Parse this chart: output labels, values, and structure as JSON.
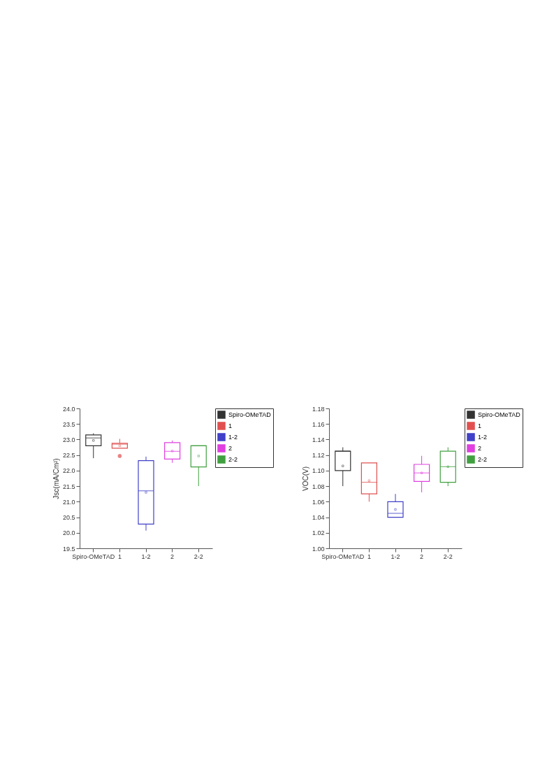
{
  "chart_data": [
    {
      "type": "box",
      "ylabel": "Jsc(mA/Cm²)",
      "categories": [
        "Spiro-OMeTAD",
        "1",
        "1-2",
        "2",
        "2-2"
      ],
      "series": [
        {
          "name": "Spiro-OMeTAD",
          "color": "#333333",
          "boxes": [
            {
              "low": 22.4,
              "q1": 22.8,
              "median": 23.05,
              "q3": 23.15,
              "high": 23.2,
              "mean": 22.97
            },
            null,
            null,
            null,
            null
          ]
        },
        {
          "name": "1",
          "color": "#e05050",
          "boxes": [
            null,
            {
              "low": 22.72,
              "q1": 22.72,
              "median": 22.85,
              "q3": 22.88,
              "high": 23.02,
              "mean": 22.8,
              "outliers": [
                22.47
              ]
            },
            null,
            null,
            null
          ]
        },
        {
          "name": "1-2",
          "color": "#4040c8",
          "boxes": [
            null,
            null,
            {
              "low": 20.07,
              "q1": 20.28,
              "median": 21.35,
              "q3": 22.32,
              "high": 22.45,
              "mean": 21.3
            },
            null,
            null
          ]
        },
        {
          "name": "2",
          "color": "#e040e0",
          "boxes": [
            null,
            null,
            null,
            {
              "low": 22.25,
              "q1": 22.37,
              "median": 22.62,
              "q3": 22.9,
              "high": 22.97,
              "mean": 22.63
            },
            null
          ]
        },
        {
          "name": "2-2",
          "color": "#40a040",
          "boxes": [
            null,
            null,
            null,
            null,
            {
              "low": 21.5,
              "q1": 22.12,
              "median": 22.8,
              "q3": 22.8,
              "high": 22.8,
              "mean": 22.47
            }
          ]
        }
      ],
      "ylim": [
        19.5,
        24.0
      ],
      "yticks": [
        {
          "value": 19.5,
          "label": "19.5"
        },
        {
          "value": 20,
          "label": "20.0"
        },
        {
          "value": 20.5,
          "label": "20.5"
        },
        {
          "value": 21,
          "label": "21.0"
        },
        {
          "value": 21.5,
          "label": "21.5"
        },
        {
          "value": 22,
          "label": "22.0"
        },
        {
          "value": 22.5,
          "label": "22.5"
        },
        {
          "value": 23,
          "label": "23.0"
        },
        {
          "value": 23.5,
          "label": "23.5"
        },
        {
          "value": 24,
          "label": "24.0"
        }
      ],
      "legend": "top right",
      "grid": false
    },
    {
      "type": "box",
      "ylabel": "VOC(V)",
      "categories": [
        "Spiro-OMeTAD",
        "1",
        "1-2",
        "2",
        "2-2"
      ],
      "series": [
        {
          "name": "Spiro-OMeTAD",
          "color": "#333333",
          "boxes": [
            {
              "low": 1.08,
              "q1": 1.1,
              "median": 1.125,
              "q3": 1.125,
              "high": 1.13,
              "mean": 1.106
            },
            null,
            null,
            null,
            null
          ]
        },
        {
          "name": "1",
          "color": "#e05050",
          "boxes": [
            null,
            {
              "low": 1.06,
              "q1": 1.07,
              "median": 1.085,
              "q3": 1.11,
              "high": 1.11,
              "mean": 1.087
            },
            null,
            null,
            null
          ]
        },
        {
          "name": "1-2",
          "color": "#4040c8",
          "boxes": [
            null,
            null,
            {
              "low": 1.04,
              "q1": 1.04,
              "median": 1.045,
              "q3": 1.06,
              "high": 1.07,
              "mean": 1.05
            },
            null,
            null
          ]
        },
        {
          "name": "2",
          "color": "#e040e0",
          "boxes": [
            null,
            null,
            null,
            {
              "low": 1.072,
              "q1": 1.086,
              "median": 1.097,
              "q3": 1.108,
              "high": 1.119,
              "mean": 1.097
            },
            null
          ]
        },
        {
          "name": "2-2",
          "color": "#40a040",
          "boxes": [
            null,
            null,
            null,
            null,
            {
              "low": 1.08,
              "q1": 1.085,
              "median": 1.105,
              "q3": 1.125,
              "high": 1.13,
              "mean": 1.105
            }
          ]
        }
      ],
      "ylim": [
        1.0,
        1.18
      ],
      "yticks": [
        {
          "value": 1.0,
          "label": "1.00"
        },
        {
          "value": 1.02,
          "label": "1.02"
        },
        {
          "value": 1.04,
          "label": "1.04"
        },
        {
          "value": 1.06,
          "label": "1.06"
        },
        {
          "value": 1.08,
          "label": "1.08"
        },
        {
          "value": 1.1,
          "label": "1.10"
        },
        {
          "value": 1.12,
          "label": "1.12"
        },
        {
          "value": 1.14,
          "label": "1.14"
        },
        {
          "value": 1.16,
          "label": "1.16"
        },
        {
          "value": 1.18,
          "label": "1.18"
        }
      ],
      "legend": "top right",
      "grid": false
    }
  ]
}
